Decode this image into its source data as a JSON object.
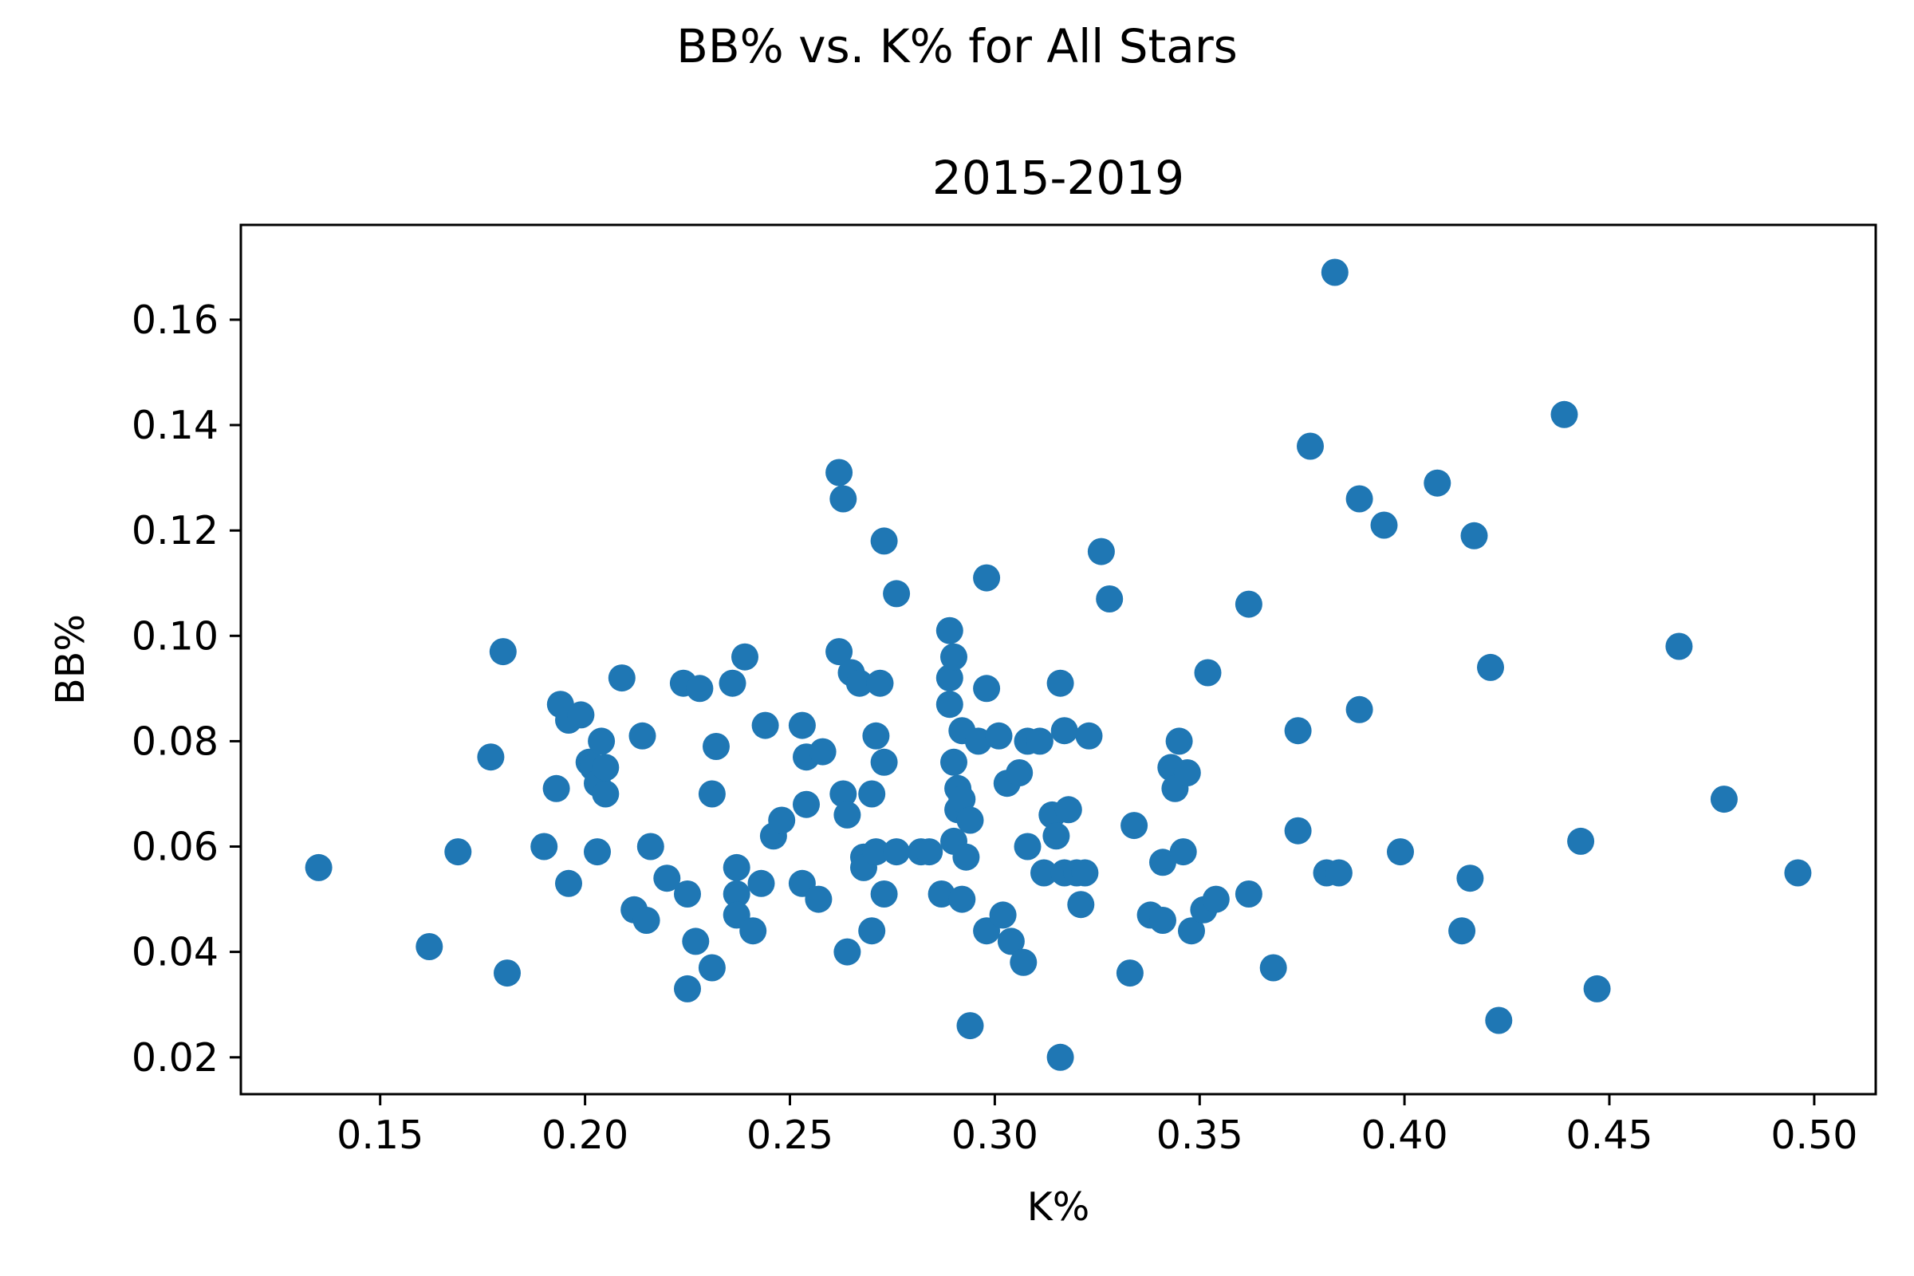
{
  "chart_data": {
    "type": "scatter",
    "title": "BB% vs. K% for All Stars",
    "subtitle": "2015-2019",
    "xlabel": "K%",
    "ylabel": "BB%",
    "xlim": [
      0.116,
      0.515
    ],
    "ylim": [
      0.013,
      0.178
    ],
    "xticks": [
      {
        "value": 0.15,
        "label": "0.15"
      },
      {
        "value": 0.2,
        "label": "0.20"
      },
      {
        "value": 0.25,
        "label": "0.25"
      },
      {
        "value": 0.3,
        "label": "0.30"
      },
      {
        "value": 0.35,
        "label": "0.35"
      },
      {
        "value": 0.4,
        "label": "0.40"
      },
      {
        "value": 0.45,
        "label": "0.45"
      },
      {
        "value": 0.5,
        "label": "0.50"
      }
    ],
    "yticks": [
      {
        "value": 0.02,
        "label": "0.02"
      },
      {
        "value": 0.04,
        "label": "0.04"
      },
      {
        "value": 0.06,
        "label": "0.06"
      },
      {
        "value": 0.08,
        "label": "0.08"
      },
      {
        "value": 0.1,
        "label": "0.10"
      },
      {
        "value": 0.12,
        "label": "0.12"
      },
      {
        "value": 0.14,
        "label": "0.14"
      },
      {
        "value": 0.16,
        "label": "0.16"
      }
    ],
    "grid": false,
    "marker_color": "#1f77b4",
    "points": [
      [
        0.135,
        0.056
      ],
      [
        0.162,
        0.041
      ],
      [
        0.169,
        0.059
      ],
      [
        0.177,
        0.077
      ],
      [
        0.18,
        0.097
      ],
      [
        0.181,
        0.036
      ],
      [
        0.19,
        0.06
      ],
      [
        0.193,
        0.071
      ],
      [
        0.194,
        0.087
      ],
      [
        0.196,
        0.084
      ],
      [
        0.196,
        0.053
      ],
      [
        0.199,
        0.085
      ],
      [
        0.201,
        0.076
      ],
      [
        0.202,
        0.075
      ],
      [
        0.203,
        0.072
      ],
      [
        0.203,
        0.059
      ],
      [
        0.204,
        0.08
      ],
      [
        0.205,
        0.07
      ],
      [
        0.205,
        0.075
      ],
      [
        0.209,
        0.092
      ],
      [
        0.212,
        0.048
      ],
      [
        0.214,
        0.081
      ],
      [
        0.215,
        0.046
      ],
      [
        0.216,
        0.06
      ],
      [
        0.22,
        0.054
      ],
      [
        0.224,
        0.091
      ],
      [
        0.225,
        0.051
      ],
      [
        0.225,
        0.033
      ],
      [
        0.227,
        0.042
      ],
      [
        0.228,
        0.09
      ],
      [
        0.231,
        0.07
      ],
      [
        0.231,
        0.037
      ],
      [
        0.232,
        0.079
      ],
      [
        0.236,
        0.091
      ],
      [
        0.237,
        0.056
      ],
      [
        0.237,
        0.051
      ],
      [
        0.237,
        0.047
      ],
      [
        0.239,
        0.096
      ],
      [
        0.241,
        0.044
      ],
      [
        0.243,
        0.053
      ],
      [
        0.244,
        0.083
      ],
      [
        0.246,
        0.062
      ],
      [
        0.248,
        0.065
      ],
      [
        0.253,
        0.083
      ],
      [
        0.253,
        0.053
      ],
      [
        0.254,
        0.077
      ],
      [
        0.254,
        0.068
      ],
      [
        0.257,
        0.05
      ],
      [
        0.258,
        0.078
      ],
      [
        0.262,
        0.131
      ],
      [
        0.262,
        0.097
      ],
      [
        0.263,
        0.126
      ],
      [
        0.263,
        0.07
      ],
      [
        0.264,
        0.066
      ],
      [
        0.264,
        0.04
      ],
      [
        0.265,
        0.093
      ],
      [
        0.267,
        0.091
      ],
      [
        0.268,
        0.058
      ],
      [
        0.268,
        0.056
      ],
      [
        0.27,
        0.07
      ],
      [
        0.27,
        0.044
      ],
      [
        0.271,
        0.081
      ],
      [
        0.271,
        0.059
      ],
      [
        0.272,
        0.091
      ],
      [
        0.273,
        0.118
      ],
      [
        0.273,
        0.076
      ],
      [
        0.273,
        0.051
      ],
      [
        0.276,
        0.108
      ],
      [
        0.276,
        0.059
      ],
      [
        0.282,
        0.059
      ],
      [
        0.284,
        0.059
      ],
      [
        0.287,
        0.051
      ],
      [
        0.289,
        0.101
      ],
      [
        0.289,
        0.092
      ],
      [
        0.289,
        0.087
      ],
      [
        0.29,
        0.096
      ],
      [
        0.29,
        0.076
      ],
      [
        0.29,
        0.061
      ],
      [
        0.291,
        0.071
      ],
      [
        0.291,
        0.067
      ],
      [
        0.292,
        0.082
      ],
      [
        0.292,
        0.069
      ],
      [
        0.292,
        0.05
      ],
      [
        0.293,
        0.058
      ],
      [
        0.294,
        0.065
      ],
      [
        0.294,
        0.026
      ],
      [
        0.296,
        0.08
      ],
      [
        0.298,
        0.111
      ],
      [
        0.298,
        0.09
      ],
      [
        0.298,
        0.044
      ],
      [
        0.301,
        0.081
      ],
      [
        0.302,
        0.047
      ],
      [
        0.303,
        0.072
      ],
      [
        0.304,
        0.042
      ],
      [
        0.306,
        0.074
      ],
      [
        0.307,
        0.038
      ],
      [
        0.308,
        0.08
      ],
      [
        0.308,
        0.06
      ],
      [
        0.311,
        0.08
      ],
      [
        0.312,
        0.055
      ],
      [
        0.314,
        0.066
      ],
      [
        0.315,
        0.062
      ],
      [
        0.316,
        0.091
      ],
      [
        0.316,
        0.02
      ],
      [
        0.317,
        0.082
      ],
      [
        0.317,
        0.055
      ],
      [
        0.318,
        0.067
      ],
      [
        0.32,
        0.055
      ],
      [
        0.321,
        0.049
      ],
      [
        0.322,
        0.055
      ],
      [
        0.323,
        0.081
      ],
      [
        0.326,
        0.116
      ],
      [
        0.328,
        0.107
      ],
      [
        0.333,
        0.036
      ],
      [
        0.334,
        0.064
      ],
      [
        0.338,
        0.047
      ],
      [
        0.341,
        0.057
      ],
      [
        0.341,
        0.046
      ],
      [
        0.343,
        0.075
      ],
      [
        0.344,
        0.071
      ],
      [
        0.345,
        0.08
      ],
      [
        0.346,
        0.059
      ],
      [
        0.347,
        0.074
      ],
      [
        0.348,
        0.044
      ],
      [
        0.351,
        0.048
      ],
      [
        0.352,
        0.093
      ],
      [
        0.354,
        0.05
      ],
      [
        0.362,
        0.106
      ],
      [
        0.362,
        0.051
      ],
      [
        0.368,
        0.037
      ],
      [
        0.374,
        0.082
      ],
      [
        0.374,
        0.063
      ],
      [
        0.377,
        0.136
      ],
      [
        0.381,
        0.055
      ],
      [
        0.383,
        0.169
      ],
      [
        0.384,
        0.055
      ],
      [
        0.389,
        0.126
      ],
      [
        0.389,
        0.086
      ],
      [
        0.395,
        0.121
      ],
      [
        0.399,
        0.059
      ],
      [
        0.408,
        0.129
      ],
      [
        0.414,
        0.044
      ],
      [
        0.416,
        0.054
      ],
      [
        0.417,
        0.119
      ],
      [
        0.421,
        0.094
      ],
      [
        0.423,
        0.027
      ],
      [
        0.439,
        0.142
      ],
      [
        0.443,
        0.061
      ],
      [
        0.447,
        0.033
      ],
      [
        0.467,
        0.098
      ],
      [
        0.478,
        0.069
      ],
      [
        0.496,
        0.055
      ]
    ]
  }
}
